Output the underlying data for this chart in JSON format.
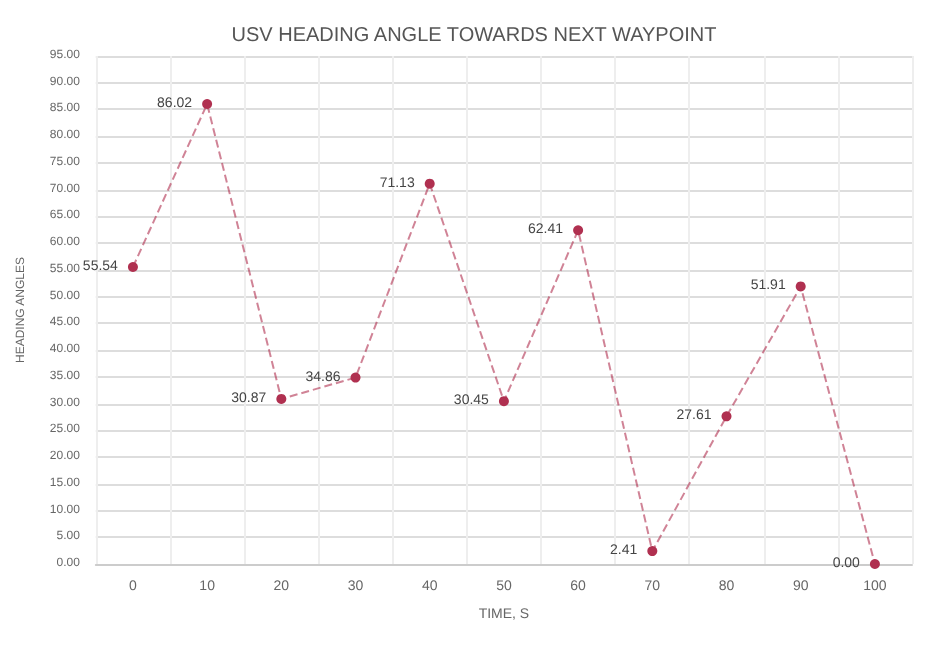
{
  "chart_data": {
    "type": "line",
    "title": "USV HEADING ANGLE TOWARDS NEXT WAYPOINT",
    "xlabel": "TIME, S",
    "ylabel": "HEADING ANGLES",
    "categories": [
      "0",
      "10",
      "20",
      "30",
      "40",
      "50",
      "60",
      "70",
      "80",
      "90",
      "100"
    ],
    "series": [
      {
        "color": "#b03050",
        "values": [
          55.54,
          86.02,
          30.87,
          34.86,
          71.13,
          30.45,
          62.41,
          2.41,
          27.61,
          51.91,
          0.0
        ],
        "value_labels": [
          "55.54",
          "86.02",
          "30.87",
          "34.86",
          "71.13",
          "30.45",
          "62.41",
          "2.41",
          "27.61",
          "51.91",
          "0.00"
        ]
      }
    ],
    "ylim": [
      0,
      95
    ],
    "yticks": [
      {
        "value": 0,
        "label": "0.00"
      },
      {
        "value": 5,
        "label": "5.00"
      },
      {
        "value": 10,
        "label": "10.00"
      },
      {
        "value": 15,
        "label": "15.00"
      },
      {
        "value": 20,
        "label": "20.00"
      },
      {
        "value": 25,
        "label": "25.00"
      },
      {
        "value": 30,
        "label": "30.00"
      },
      {
        "value": 35,
        "label": "35.00"
      },
      {
        "value": 40,
        "label": "40.00"
      },
      {
        "value": 45,
        "label": "45.00"
      },
      {
        "value": 50,
        "label": "50.00"
      },
      {
        "value": 55,
        "label": "55.00"
      },
      {
        "value": 60,
        "label": "60.00"
      },
      {
        "value": 65,
        "label": "65.00"
      },
      {
        "value": 70,
        "label": "70.00"
      },
      {
        "value": 75,
        "label": "75.00"
      },
      {
        "value": 80,
        "label": "80.00"
      },
      {
        "value": 85,
        "label": "85.00"
      },
      {
        "value": 90,
        "label": "90.00"
      },
      {
        "value": 95,
        "label": "95.00"
      }
    ],
    "grid": true,
    "marker": "circle",
    "line_style": "dashed"
  }
}
